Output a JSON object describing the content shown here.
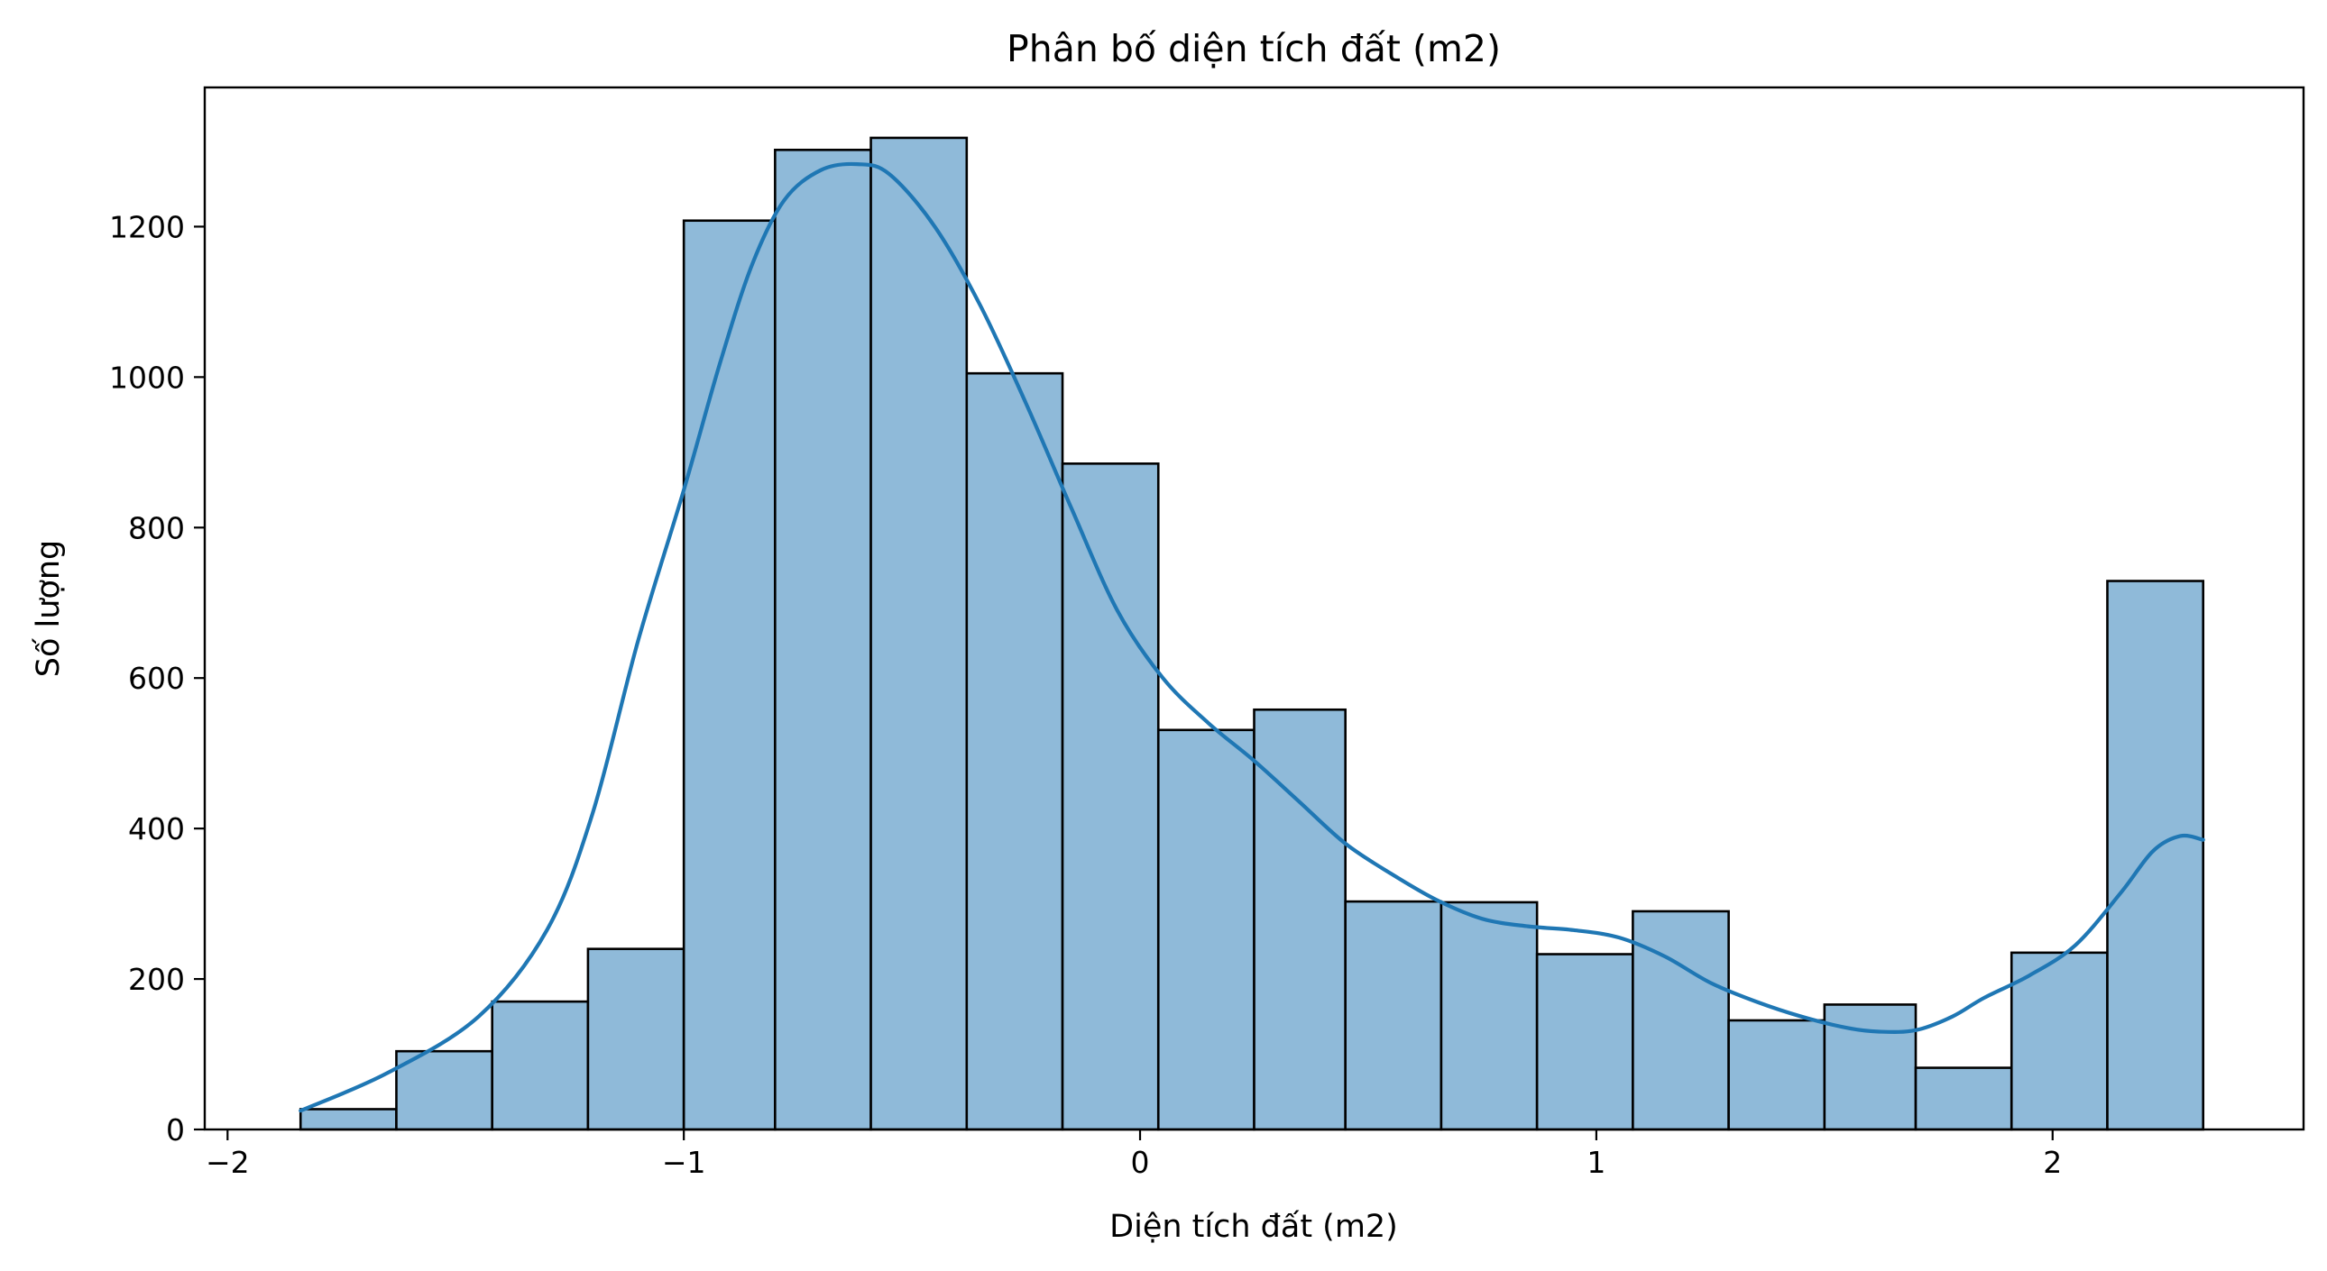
{
  "chart_data": {
    "type": "bar",
    "title": "Phân bố diện tích đất (m2)",
    "xlabel": "Diện tích đất (m2)",
    "ylabel": "Số lượng",
    "xlim": [
      -2.05,
      2.55
    ],
    "ylim": [
      0,
      1385
    ],
    "x_ticks": [
      {
        "value": -2,
        "label": "−2"
      },
      {
        "value": -1,
        "label": "−1"
      },
      {
        "value": 0,
        "label": "0"
      },
      {
        "value": 1,
        "label": "1"
      },
      {
        "value": 2,
        "label": "2"
      }
    ],
    "y_ticks": [
      {
        "value": 0,
        "label": "0"
      },
      {
        "value": 200,
        "label": "200"
      },
      {
        "value": 400,
        "label": "400"
      },
      {
        "value": 600,
        "label": "600"
      },
      {
        "value": 800,
        "label": "800"
      },
      {
        "value": 1000,
        "label": "1000"
      },
      {
        "value": 1200,
        "label": "1200"
      }
    ],
    "bar_color": "#8fbad9",
    "edge_color": "#000000",
    "kde_color": "#1f77b4",
    "bins": [
      {
        "x0": -1.84,
        "x1": -1.63,
        "count": 27
      },
      {
        "x0": -1.63,
        "x1": -1.42,
        "count": 104
      },
      {
        "x0": -1.42,
        "x1": -1.21,
        "count": 170
      },
      {
        "x0": -1.21,
        "x1": -1.0,
        "count": 240
      },
      {
        "x0": -1.0,
        "x1": -0.8,
        "count": 1208
      },
      {
        "x0": -0.8,
        "x1": -0.59,
        "count": 1302
      },
      {
        "x0": -0.59,
        "x1": -0.38,
        "count": 1318
      },
      {
        "x0": -0.38,
        "x1": -0.17,
        "count": 1005
      },
      {
        "x0": -0.17,
        "x1": 0.04,
        "count": 885
      },
      {
        "x0": 0.04,
        "x1": 0.25,
        "count": 531
      },
      {
        "x0": 0.25,
        "x1": 0.45,
        "count": 558
      },
      {
        "x0": 0.45,
        "x1": 0.66,
        "count": 303
      },
      {
        "x0": 0.66,
        "x1": 0.87,
        "count": 302
      },
      {
        "x0": 0.87,
        "x1": 1.08,
        "count": 233
      },
      {
        "x0": 1.08,
        "x1": 1.29,
        "count": 290
      },
      {
        "x0": 1.29,
        "x1": 1.5,
        "count": 145
      },
      {
        "x0": 1.5,
        "x1": 1.7,
        "count": 166
      },
      {
        "x0": 1.7,
        "x1": 1.91,
        "count": 82
      },
      {
        "x0": 1.91,
        "x1": 2.12,
        "count": 235
      },
      {
        "x0": 2.12,
        "x1": 2.33,
        "count": 729
      }
    ],
    "kde": {
      "x": [
        -1.84,
        -1.65,
        -1.45,
        -1.3,
        -1.2,
        -1.1,
        -1.0,
        -0.92,
        -0.85,
        -0.78,
        -0.7,
        -0.62,
        -0.55,
        -0.45,
        -0.35,
        -0.25,
        -0.15,
        -0.05,
        0.05,
        0.15,
        0.25,
        0.35,
        0.45,
        0.55,
        0.65,
        0.75,
        0.85,
        0.95,
        1.05,
        1.15,
        1.25,
        1.35,
        1.45,
        1.55,
        1.62,
        1.7,
        1.78,
        1.85,
        1.95,
        2.05,
        2.15,
        2.22,
        2.28,
        2.33
      ],
      "y": [
        25,
        75,
        150,
        265,
        420,
        650,
        850,
        1020,
        1150,
        1235,
        1275,
        1283,
        1270,
        1200,
        1095,
        965,
        825,
        690,
        600,
        540,
        490,
        435,
        380,
        340,
        305,
        280,
        270,
        265,
        255,
        230,
        195,
        170,
        150,
        135,
        130,
        132,
        150,
        175,
        205,
        245,
        315,
        370,
        390,
        385
      ]
    }
  }
}
